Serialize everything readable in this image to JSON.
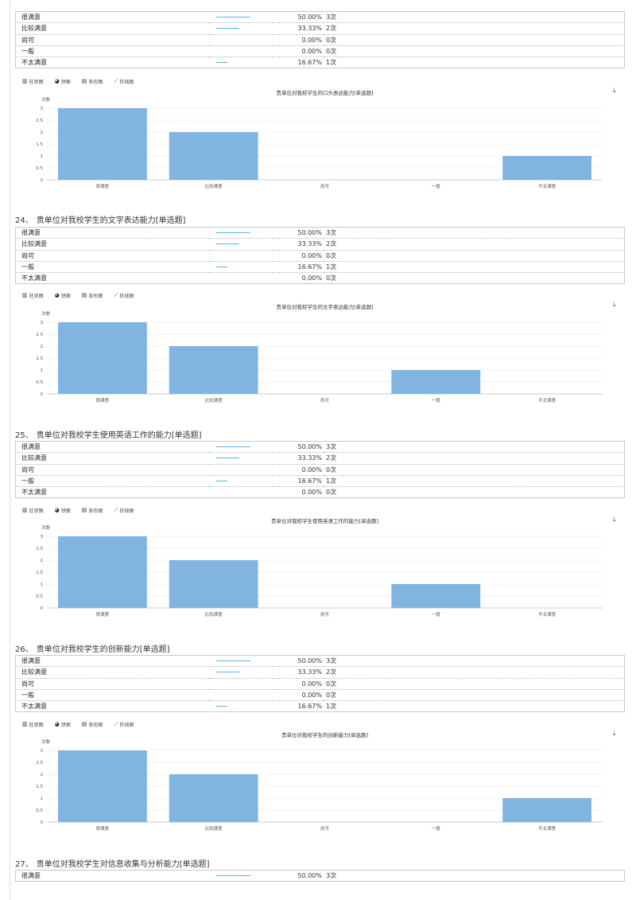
{
  "chart_tabs": [
    {
      "icon": "bar-chart-icon",
      "glyph": "▥",
      "label": "柱状图"
    },
    {
      "icon": "pie-chart-icon",
      "glyph": "◕",
      "label": "饼图"
    },
    {
      "icon": "horizontal-bar-icon",
      "glyph": "▤",
      "label": "条形图"
    },
    {
      "icon": "line-chart-icon",
      "glyph": "⟋",
      "label": "折线图"
    }
  ],
  "download_icon": "⤓",
  "questions": [
    {
      "rows": [
        {
          "label": "很满意",
          "pct": "50.00%",
          "count": "3次",
          "fraction": 0.5
        },
        {
          "label": "比较满意",
          "pct": "33.33%",
          "count": "2次",
          "fraction": 0.3333
        },
        {
          "label": "尚可",
          "pct": "0.00%",
          "count": "0次",
          "fraction": 0
        },
        {
          "label": "一般",
          "pct": "0.00%",
          "count": "0次",
          "fraction": 0
        },
        {
          "label": "不太满意",
          "pct": "16.67%",
          "count": "1次",
          "fraction": 0.1667
        }
      ]
    },
    {
      "number": "24、",
      "title": "贵单位对我校学生的文字表达能力[单选题]",
      "rows": [
        {
          "label": "很满意",
          "pct": "50.00%",
          "count": "3次",
          "fraction": 0.5
        },
        {
          "label": "比较满意",
          "pct": "33.33%",
          "count": "2次",
          "fraction": 0.3333
        },
        {
          "label": "尚可",
          "pct": "0.00%",
          "count": "0次",
          "fraction": 0
        },
        {
          "label": "一般",
          "pct": "16.67%",
          "count": "1次",
          "fraction": 0.1667
        },
        {
          "label": "不太满意",
          "pct": "0.00%",
          "count": "0次",
          "fraction": 0
        }
      ]
    },
    {
      "number": "25、",
      "title": "贵单位对我校学生使用英语工作的能力[单选题]",
      "rows": [
        {
          "label": "很满意",
          "pct": "50.00%",
          "count": "3次",
          "fraction": 0.5
        },
        {
          "label": "比较满意",
          "pct": "33.33%",
          "count": "2次",
          "fraction": 0.3333
        },
        {
          "label": "尚可",
          "pct": "0.00%",
          "count": "0次",
          "fraction": 0
        },
        {
          "label": "一般",
          "pct": "16.67%",
          "count": "1次",
          "fraction": 0.1667
        },
        {
          "label": "不太满意",
          "pct": "0.00%",
          "count": "0次",
          "fraction": 0
        }
      ]
    },
    {
      "number": "26、",
      "title": "贵单位对我校学生的创新能力[单选题]",
      "rows": [
        {
          "label": "很满意",
          "pct": "50.00%",
          "count": "3次",
          "fraction": 0.5
        },
        {
          "label": "比较满意",
          "pct": "33.33%",
          "count": "2次",
          "fraction": 0.3333
        },
        {
          "label": "尚可",
          "pct": "0.00%",
          "count": "0次",
          "fraction": 0
        },
        {
          "label": "一般",
          "pct": "0.00%",
          "count": "0次",
          "fraction": 0
        },
        {
          "label": "不太满意",
          "pct": "16.67%",
          "count": "1次",
          "fraction": 0.1667
        }
      ]
    },
    {
      "number": "27、",
      "title": "贵单位对我校学生对信息收集与分析能力[单选题]",
      "rows": [
        {
          "label": "很满意",
          "pct": "50.00%",
          "count": "3次",
          "fraction": 0.5
        }
      ]
    }
  ],
  "chart_data": [
    {
      "type": "bar",
      "title": "贵单位对我校学生的口头表达能力[单选题]",
      "ylabel": "次数",
      "ylim": [
        0,
        3
      ],
      "yticks": [
        "0",
        "0.5",
        "1",
        "1.5",
        "2",
        "2.5",
        "3"
      ],
      "grid": true,
      "categories": [
        "很满意",
        "比较满意",
        "尚可",
        "一般",
        "不太满意"
      ],
      "values": [
        3,
        2,
        0,
        0,
        1
      ],
      "color": "#82b4e2"
    },
    {
      "type": "bar",
      "title": "贵单位对我校学生的文字表达能力[单选题]",
      "ylabel": "次数",
      "ylim": [
        0,
        3
      ],
      "yticks": [
        "0",
        "0.5",
        "1",
        "1.5",
        "2",
        "2.5",
        "3"
      ],
      "grid": true,
      "categories": [
        "很满意",
        "比较满意",
        "尚可",
        "一般",
        "不太满意"
      ],
      "values": [
        3,
        2,
        0,
        1,
        0
      ],
      "color": "#82b4e2"
    },
    {
      "type": "bar",
      "title": "贵单位对我校学生使用英语工作的能力[单选题]",
      "ylabel": "次数",
      "ylim": [
        0,
        3
      ],
      "yticks": [
        "0",
        "0.5",
        "1",
        "1.5",
        "2",
        "2.5",
        "3"
      ],
      "grid": true,
      "categories": [
        "很满意",
        "比较满意",
        "尚可",
        "一般",
        "不太满意"
      ],
      "values": [
        3,
        2,
        0,
        1,
        0
      ],
      "color": "#82b4e2"
    },
    {
      "type": "bar",
      "title": "贵单位对我校学生的创新能力[单选题]",
      "ylabel": "次数",
      "ylim": [
        0,
        3
      ],
      "yticks": [
        "0",
        "0.5",
        "1",
        "1.5",
        "2",
        "2.5",
        "3"
      ],
      "grid": true,
      "categories": [
        "很满意",
        "比较满意",
        "尚可",
        "一般",
        "不太满意"
      ],
      "values": [
        3,
        2,
        0,
        0,
        1
      ],
      "color": "#82b4e2"
    }
  ]
}
